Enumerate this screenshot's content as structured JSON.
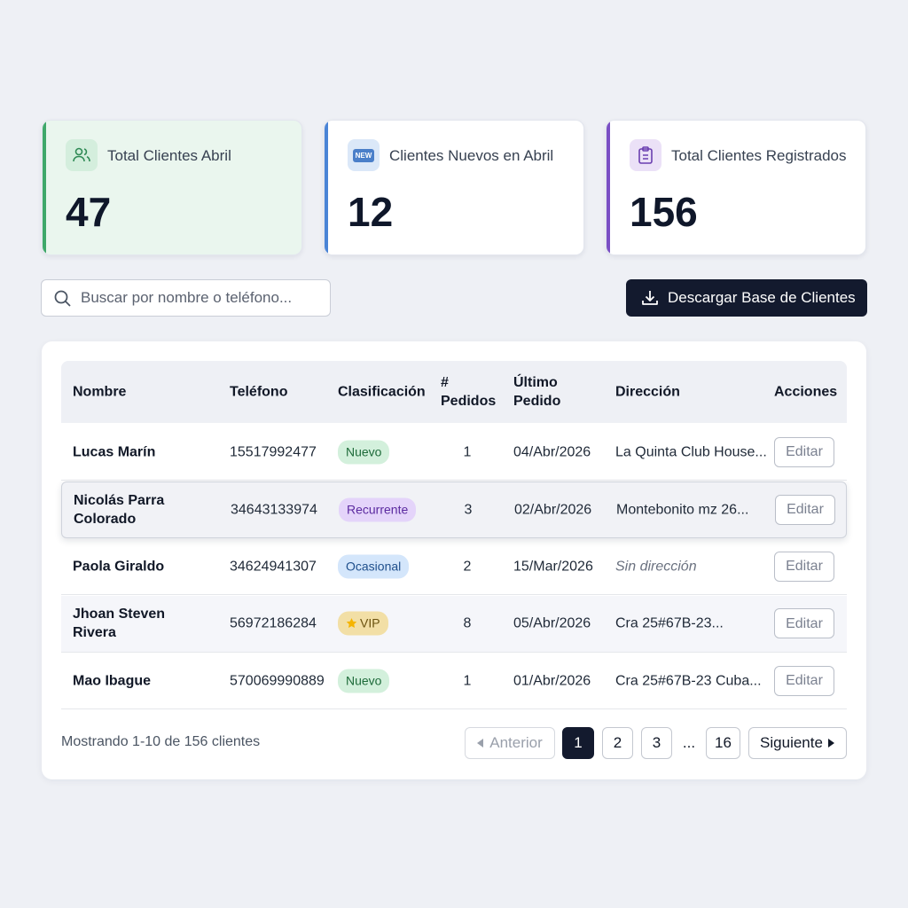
{
  "stats": [
    {
      "label": "Total Clientes Abril",
      "value": 47
    },
    {
      "label": "Clientes Nuevos en Abril",
      "value": 12,
      "icon_text": "NEW"
    },
    {
      "label": "Total Clientes Registrados",
      "value": 156
    }
  ],
  "search": {
    "placeholder": "Buscar por nombre o teléfono..."
  },
  "download_button": "Descargar Base de Clientes",
  "table": {
    "headers": [
      "Nombre",
      "Teléfono",
      "Clasificación",
      "# Pedidos",
      "Último Pedido",
      "Dirección",
      "Acciones"
    ],
    "rows": [
      {
        "name": "Lucas Marín",
        "phone": "15517992477",
        "class": "Nuevo",
        "orders": 1,
        "last_order": "04/Abr/2026",
        "address": "La Quinta Club House...",
        "action": "Editar"
      },
      {
        "name": "Nicolás Parra Colorado",
        "phone": "34643133974",
        "class": "Recurrente",
        "orders": 3,
        "last_order": "02/Abr/2026",
        "address": "Montebonito mz 26...",
        "action": "Editar"
      },
      {
        "name": "Paola Giraldo",
        "phone": "34624941307",
        "class": "Ocasional",
        "orders": 2,
        "last_order": "15/Mar/2026",
        "address": "Sin dirección",
        "action": "Editar"
      },
      {
        "name": "Jhoan Steven Rivera",
        "phone": "56972186284",
        "class": "VIP",
        "orders": 8,
        "last_order": "05/Abr/2026",
        "address": "Cra 25#67B-23...",
        "action": "Editar"
      },
      {
        "name": "Mao Ibague",
        "phone": "570069990889",
        "class": "Nuevo",
        "orders": 1,
        "last_order": "01/Abr/2026",
        "address": "Cra 25#67B-23 Cuba...",
        "action": "Editar"
      }
    ]
  },
  "footer": {
    "summary": "Mostrando 1-10 de 156 clientes",
    "pagination": [
      "Anterior",
      "1",
      "2",
      "3",
      "...",
      "16",
      "Siguiente"
    ]
  }
}
